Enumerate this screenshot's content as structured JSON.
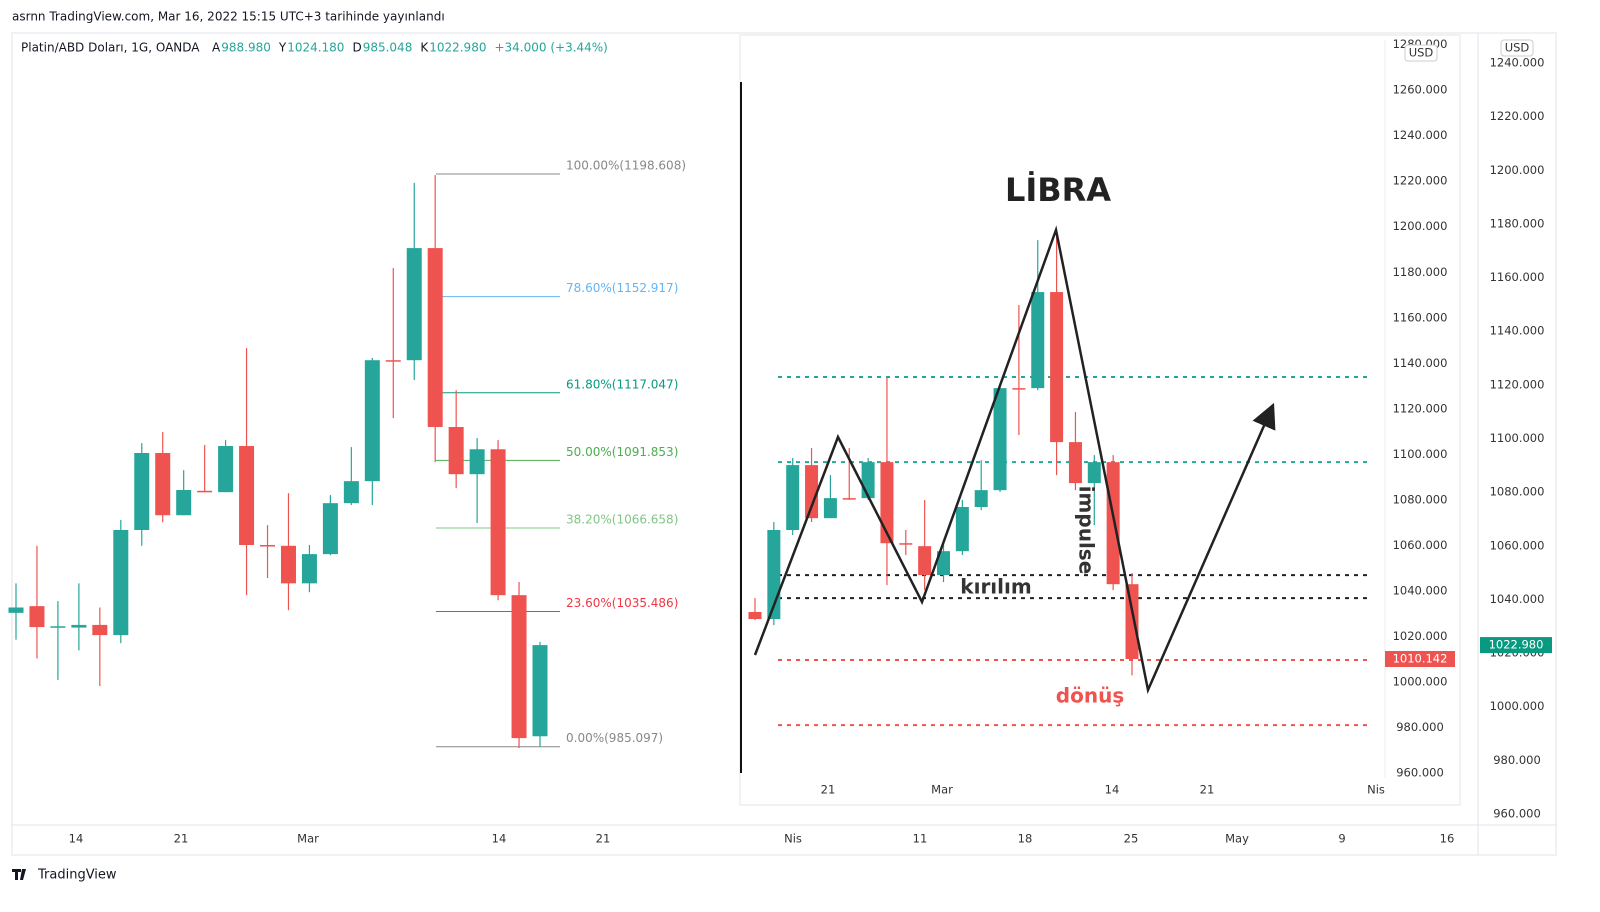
{
  "header": {
    "published": "asrnn TradingView.com, Mar 16, 2022 15:15 UTC+3 tarihinde yayınlandı",
    "symbol": "Platin/ABD Doları, 1G, OANDA",
    "ohlc": [
      {
        "name": "A",
        "value": 988.98,
        "label": "988.980"
      },
      {
        "name": "Y",
        "value": 1024.18,
        "label": "1024.180"
      },
      {
        "name": "D",
        "value": 985.048,
        "label": "985.048"
      },
      {
        "name": "K",
        "value": 1022.98,
        "label": "1022.980"
      }
    ],
    "change": "+34.000 (+3.44%)"
  },
  "footer": {
    "brand": "TradingView"
  },
  "chart_data": [
    {
      "type": "candlestick",
      "up_color": "#26a69a",
      "down_color": "#ef5350",
      "currency": "USD",
      "ylim": [
        955.9,
        1251.2
      ],
      "yticks": [
        {
          "value": 1240,
          "label": "1240.000"
        },
        {
          "value": 1220,
          "label": "1220.000"
        },
        {
          "value": 1200,
          "label": "1200.000"
        },
        {
          "value": 1180,
          "label": "1180.000"
        },
        {
          "value": 1160,
          "label": "1160.000"
        },
        {
          "value": 1140,
          "label": "1140.000"
        },
        {
          "value": 1120,
          "label": "1120.000"
        },
        {
          "value": 1100,
          "label": "1100.000"
        },
        {
          "value": 1080,
          "label": "1080.000"
        },
        {
          "value": 1060,
          "label": "1060.000"
        },
        {
          "value": 1040,
          "label": "1040.000"
        },
        {
          "value": 1020,
          "label": "1020.000"
        },
        {
          "value": 1000,
          "label": "1000.000"
        },
        {
          "value": 980,
          "label": "980.000"
        },
        {
          "value": 960,
          "label": "960.000"
        }
      ],
      "x_labels": [
        "14",
        "21",
        "Mar",
        "14",
        "21",
        "Nis",
        "11",
        "18",
        "25",
        "May",
        "9",
        "16"
      ],
      "open": [
        1035,
        1037.5,
        1030,
        1029.5,
        1030.5,
        1026.7,
        1065.9,
        1094.6,
        1071.4,
        1080.5,
        1080,
        1097.2,
        1060.3,
        1060,
        1046,
        1056.9,
        1075.9,
        1084.1,
        1129.2,
        1129.2,
        1171,
        1104.3,
        1086.7,
        1096,
        1041.6,
        988.98
      ],
      "high": [
        1046,
        1060,
        1039.4,
        1046,
        1037,
        1069.6,
        1098.3,
        1102.4,
        1088.2,
        1097.6,
        1099.4,
        1133.7,
        1067.7,
        1079.6,
        1060.3,
        1078.9,
        1096.8,
        1130,
        1163.6,
        1195.3,
        1198.2,
        1118,
        1100.2,
        1099.4,
        1046.5,
        1024.18
      ],
      "low": [
        1025,
        1018,
        1010,
        1021,
        1007.7,
        1023.7,
        1060,
        1068.8,
        1071.4,
        1080,
        1080,
        1041.6,
        1048,
        1036,
        1042.7,
        1056.5,
        1075.2,
        1075.2,
        1107.6,
        1121.8,
        1091.2,
        1081.5,
        1068.5,
        1039.7,
        984.6,
        985.048
      ],
      "close": [
        1037,
        1029.7,
        1030,
        1030.5,
        1026.7,
        1065.9,
        1094.6,
        1071.4,
        1080.8,
        1080.4,
        1097.2,
        1060.3,
        1060,
        1046,
        1056.9,
        1075.9,
        1084.1,
        1129.2,
        1128.8,
        1171,
        1104.3,
        1086.7,
        1096,
        1041.6,
        988.3,
        1022.98
      ],
      "price_label": {
        "value": 1022.98,
        "label": "1022.980"
      },
      "fib": [
        {
          "value": 1198.608,
          "label": "100.00%(1198.608)",
          "color": "#888888"
        },
        {
          "value": 1152.917,
          "label": "78.60%(1152.917)",
          "color": "#64b5f6"
        },
        {
          "value": 1117.047,
          "label": "61.80%(1117.047)",
          "color": "#089981"
        },
        {
          "value": 1091.853,
          "label": "50.00%(1091.853)",
          "color": "#4caf50"
        },
        {
          "value": 1066.658,
          "label": "38.20%(1066.658)",
          "color": "#81c784"
        },
        {
          "value": 1035.486,
          "label": "23.60%(1035.486)",
          "color": "#f23645"
        },
        {
          "value": 985.097,
          "label": "0.00%(985.097)",
          "color": "#888888"
        }
      ]
    },
    {
      "type": "candlestick",
      "up_color": "#26a69a",
      "down_color": "#ef5350",
      "currency": "USD",
      "ylim": [
        957,
        1284.2
      ],
      "yticks": [
        {
          "value": 1280,
          "label": "1280.000"
        },
        {
          "value": 1260,
          "label": "1260.000"
        },
        {
          "value": 1240,
          "label": "1240.000"
        },
        {
          "value": 1220,
          "label": "1220.000"
        },
        {
          "value": 1200,
          "label": "1200.000"
        },
        {
          "value": 1180,
          "label": "1180.000"
        },
        {
          "value": 1160,
          "label": "1160.000"
        },
        {
          "value": 1140,
          "label": "1140.000"
        },
        {
          "value": 1120,
          "label": "1120.000"
        },
        {
          "value": 1100,
          "label": "1100.000"
        },
        {
          "value": 1080,
          "label": "1080.000"
        },
        {
          "value": 1060,
          "label": "1060.000"
        },
        {
          "value": 1040,
          "label": "1040.000"
        },
        {
          "value": 1020,
          "label": "1020.000"
        },
        {
          "value": 1000,
          "label": "1000.000"
        },
        {
          "value": 980,
          "label": "980.000"
        },
        {
          "value": 960,
          "label": "960.000"
        }
      ],
      "x_labels": [
        "21",
        "Mar",
        "14",
        "21",
        "Nis"
      ],
      "open": [
        1030.8,
        1027.7,
        1066.8,
        1095.3,
        1072,
        1080.8,
        1080.8,
        1096.6,
        1061,
        1059.7,
        1047,
        1057.5,
        1076.9,
        1084.3,
        1129.1,
        1129.1,
        1171.3,
        1105.4,
        1087.4,
        1096.6,
        1043
      ],
      "high": [
        1036.9,
        1070.3,
        1098.4,
        1102.8,
        1090.9,
        1102.8,
        1098.4,
        1134,
        1066.8,
        1080,
        1062.4,
        1080,
        1097.5,
        1131.3,
        1165.6,
        1194.1,
        1197.6,
        1118.6,
        1099.7,
        1099.7,
        1047.9
      ],
      "low": [
        1027.2,
        1025,
        1064.6,
        1070.3,
        1072,
        1080,
        1080,
        1042.6,
        1055.8,
        1040.4,
        1043.9,
        1055.8,
        1075.5,
        1083.5,
        1108.5,
        1128.2,
        1090.9,
        1084.3,
        1068.9,
        1040.4,
        1003
      ],
      "close": [
        1027.7,
        1066.8,
        1095.3,
        1072,
        1080.8,
        1080.6,
        1096.6,
        1061,
        1060.6,
        1047,
        1057.5,
        1076.9,
        1084.3,
        1129.1,
        1128.7,
        1171.3,
        1105.4,
        1087.4,
        1096.6,
        1043,
        1010.142
      ],
      "price_label": {
        "value": 1010.142,
        "label": "1010.142"
      },
      "levels": [
        {
          "value": 1134,
          "color": "#26a69a"
        },
        {
          "value": 1096.6,
          "color": "#26a69a"
        },
        {
          "value": 1047,
          "color": "#222222"
        },
        {
          "value": 1036.9,
          "color": "#222222"
        },
        {
          "value": 1009.7,
          "color": "#ef5350"
        },
        {
          "value": 981.1,
          "color": "#ef5350"
        }
      ],
      "annotations": [
        {
          "text": "LİBRA",
          "color": "#222222"
        },
        {
          "text": "kırılım",
          "color": "#333333"
        },
        {
          "text": "impulse",
          "color": "#333333"
        },
        {
          "text": "dönüş",
          "color": "#ef5350"
        }
      ]
    }
  ]
}
